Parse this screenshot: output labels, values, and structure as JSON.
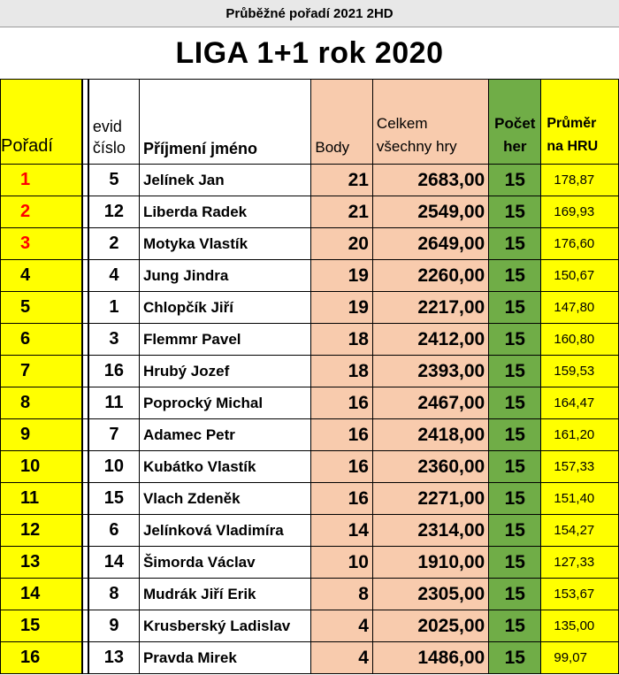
{
  "header": {
    "subtitle": "Průběžné pořadí 2021 2HD",
    "title": "LIGA 1+1 rok 2020"
  },
  "columns": {
    "rank": "Pořadí",
    "evid_line1": "evid",
    "evid_line2": "číslo",
    "name": "Příjmení jméno",
    "points": "Body",
    "total_line1": "Celkem",
    "total_line2": "všechny hry",
    "games_line1": "Počet",
    "games_line2": "her",
    "avg_line1": "Průměr",
    "avg_line2": "na HRU"
  },
  "colors": {
    "rank_bg": "#ffff00",
    "points_bg": "#f8cbad",
    "games_bg": "#70ad47",
    "top3_rank": "#ff0000"
  },
  "rows": [
    {
      "rank": "1",
      "evid": "5",
      "name": "Jelínek Jan",
      "points": "21",
      "total": "2683,00",
      "games": "15",
      "avg": "178,87"
    },
    {
      "rank": "2",
      "evid": "12",
      "name": "Liberda Radek",
      "points": "21",
      "total": "2549,00",
      "games": "15",
      "avg": "169,93"
    },
    {
      "rank": "3",
      "evid": "2",
      "name": "Motyka Vlastík",
      "points": "20",
      "total": "2649,00",
      "games": "15",
      "avg": "176,60"
    },
    {
      "rank": "4",
      "evid": "4",
      "name": "Jung Jindra",
      "points": "19",
      "total": "2260,00",
      "games": "15",
      "avg": "150,67"
    },
    {
      "rank": "5",
      "evid": "1",
      "name": "Chlopčík Jiří",
      "points": "19",
      "total": "2217,00",
      "games": "15",
      "avg": "147,80"
    },
    {
      "rank": "6",
      "evid": "3",
      "name": "Flemmr Pavel",
      "points": "18",
      "total": "2412,00",
      "games": "15",
      "avg": "160,80"
    },
    {
      "rank": "7",
      "evid": "16",
      "name": "Hrubý Jozef",
      "points": "18",
      "total": "2393,00",
      "games": "15",
      "avg": "159,53"
    },
    {
      "rank": "8",
      "evid": "11",
      "name": "Poprocký Michal",
      "points": "16",
      "total": "2467,00",
      "games": "15",
      "avg": "164,47"
    },
    {
      "rank": "9",
      "evid": "7",
      "name": "Adamec Petr",
      "points": "16",
      "total": "2418,00",
      "games": "15",
      "avg": "161,20"
    },
    {
      "rank": "10",
      "evid": "10",
      "name": "Kubátko Vlastík",
      "points": "16",
      "total": "2360,00",
      "games": "15",
      "avg": "157,33"
    },
    {
      "rank": "11",
      "evid": "15",
      "name": "Vlach Zdeněk",
      "points": "16",
      "total": "2271,00",
      "games": "15",
      "avg": "151,40"
    },
    {
      "rank": "12",
      "evid": "6",
      "name": "Jelínková Vladimíra",
      "points": "14",
      "total": "2314,00",
      "games": "15",
      "avg": "154,27"
    },
    {
      "rank": "13",
      "evid": "14",
      "name": "Šimorda Václav",
      "points": "10",
      "total": "1910,00",
      "games": "15",
      "avg": "127,33"
    },
    {
      "rank": "14",
      "evid": "8",
      "name": "Mudrák Jiří Erik",
      "points": "8",
      "total": "2305,00",
      "games": "15",
      "avg": "153,67"
    },
    {
      "rank": "15",
      "evid": "9",
      "name": "Krusberský Ladislav",
      "points": "4",
      "total": "2025,00",
      "games": "15",
      "avg": "135,00"
    },
    {
      "rank": "16",
      "evid": "13",
      "name": "Pravda Mirek",
      "points": "4",
      "total": "1486,00",
      "games": "15",
      "avg": "99,07"
    }
  ]
}
